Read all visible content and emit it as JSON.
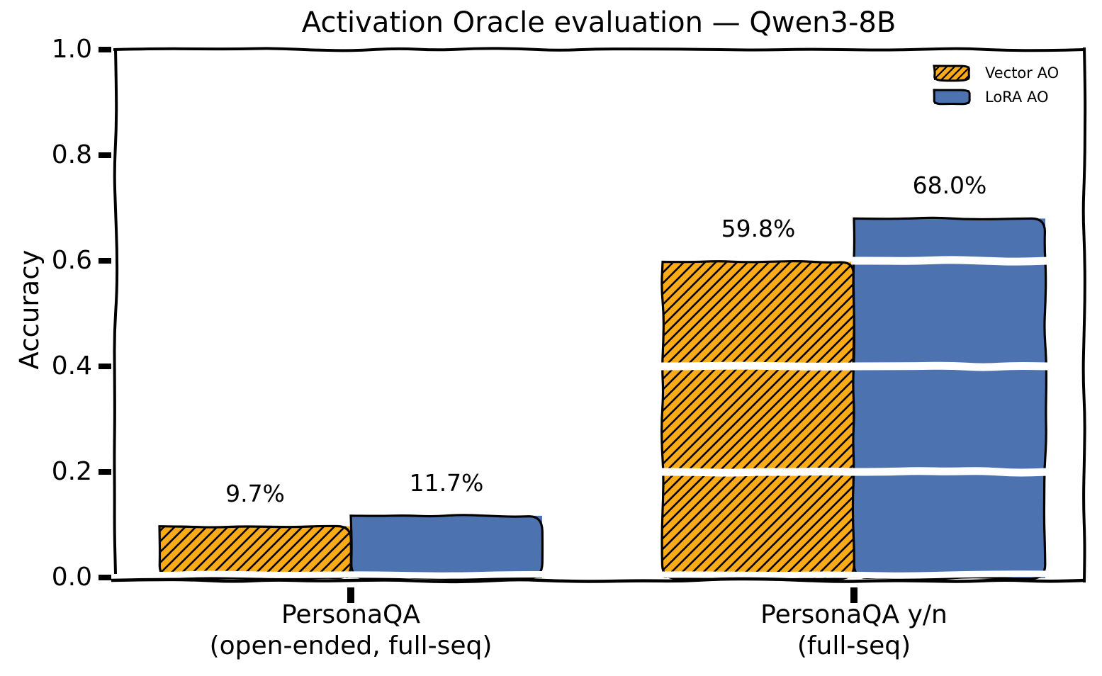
{
  "chart_data": {
    "type": "bar",
    "style": "xkcd-hand-drawn",
    "title": "Activation Oracle evaluation — Qwen3-8B",
    "ylabel": "Accuracy",
    "xlabel": "",
    "ylim": [
      0.0,
      1.0
    ],
    "yticks": [
      0.0,
      0.2,
      0.4,
      0.6,
      0.8,
      1.0
    ],
    "ytick_labels": [
      "0.0",
      "0.2",
      "0.4",
      "0.6",
      "0.8",
      "1.0"
    ],
    "categories": [
      "PersonaQA (open-ended, full-seq)",
      "PersonaQA y/n (full-seq)"
    ],
    "category_lines": [
      [
        "PersonaQA",
        "(open-ended, full-seq)"
      ],
      [
        "PersonaQA y/n",
        "(full-seq)"
      ]
    ],
    "series": [
      {
        "name": "Vector AO",
        "values": [
          0.097,
          0.598
        ],
        "value_labels": [
          "9.7%",
          "59.8%"
        ],
        "color": "#FBAB17",
        "hatch": "///",
        "edge_color": "#000000"
      },
      {
        "name": "LoRA AO",
        "values": [
          0.117,
          0.68
        ],
        "value_labels": [
          "11.7%",
          "68.0%"
        ],
        "color": "#4C72B0",
        "hatch": null,
        "edge_color": "#000000"
      }
    ],
    "legend": {
      "position": "upper right",
      "frame": false,
      "entries": [
        "Vector AO",
        "LoRA AO"
      ]
    },
    "grid": false,
    "gridline_overlay": "white wavy bands across bars at y = 0.2, 0.4, 0.6 and baseline",
    "background": "#FFFFFF",
    "text_color": "#000000"
  }
}
